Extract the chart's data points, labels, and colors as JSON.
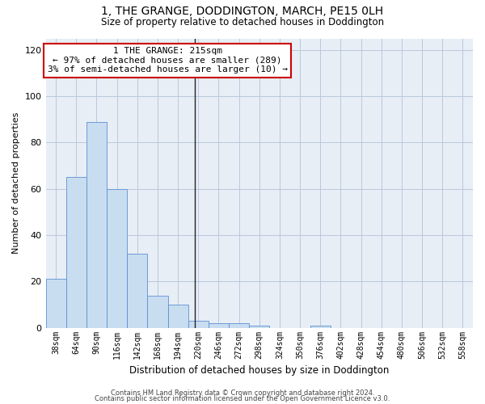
{
  "title": "1, THE GRANGE, DODDINGTON, MARCH, PE15 0LH",
  "subtitle": "Size of property relative to detached houses in Doddington",
  "xlabel": "Distribution of detached houses by size in Doddington",
  "ylabel": "Number of detached properties",
  "bins": [
    "38sqm",
    "64sqm",
    "90sqm",
    "116sqm",
    "142sqm",
    "168sqm",
    "194sqm",
    "220sqm",
    "246sqm",
    "272sqm",
    "298sqm",
    "324sqm",
    "350sqm",
    "376sqm",
    "402sqm",
    "428sqm",
    "454sqm",
    "480sqm",
    "506sqm",
    "532sqm",
    "558sqm"
  ],
  "values": [
    21,
    65,
    89,
    60,
    32,
    14,
    10,
    3,
    2,
    2,
    1,
    0,
    0,
    1,
    0,
    0,
    0,
    0,
    0,
    0,
    0
  ],
  "bar_color": "#c9ddf0",
  "bar_edge_color": "#5b8fd4",
  "grid_color": "#b8c8dc",
  "background_color": "#e8eef6",
  "annotation_text": "1 THE GRANGE: 215sqm\n← 97% of detached houses are smaller (289)\n3% of semi-detached houses are larger (10) →",
  "annotation_box_color": "#ffffff",
  "annotation_box_edge": "#cc0000",
  "vline_x": 6.83,
  "ylim": [
    0,
    125
  ],
  "yticks": [
    0,
    20,
    40,
    60,
    80,
    100,
    120
  ],
  "footer1": "Contains HM Land Registry data © Crown copyright and database right 2024.",
  "footer2": "Contains public sector information licensed under the Open Government Licence v3.0."
}
